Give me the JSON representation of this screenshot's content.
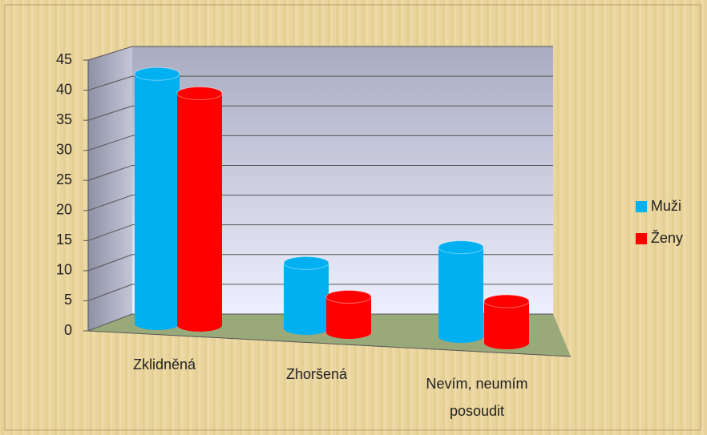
{
  "chart_data": {
    "type": "bar3d",
    "categories": [
      "Zklidněná",
      "Zhoršená",
      "Nevím, neumím posoudit"
    ],
    "series": [
      {
        "name": "Muži",
        "color": "#00b0f0",
        "values": [
          42,
          11,
          15
        ]
      },
      {
        "name": "Ženy",
        "color": "#ff0000",
        "values": [
          39,
          6,
          7
        ]
      }
    ],
    "ylim": [
      0,
      45
    ],
    "yticks": [
      0,
      5,
      10,
      15,
      20,
      25,
      30,
      35,
      40,
      45
    ],
    "grid": true,
    "legend": "right"
  }
}
